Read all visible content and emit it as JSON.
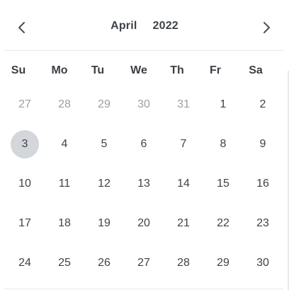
{
  "header": {
    "month": "April",
    "year": "2022",
    "prev_icon": "chevron-left-icon",
    "next_icon": "chevron-right-icon"
  },
  "weekdays": [
    "Su",
    "Mo",
    "Tu",
    "We",
    "Th",
    "Fr",
    "Sa"
  ],
  "weeks": [
    [
      {
        "label": "27",
        "outside": true
      },
      {
        "label": "28",
        "outside": true
      },
      {
        "label": "29",
        "outside": true
      },
      {
        "label": "30",
        "outside": true
      },
      {
        "label": "31",
        "outside": true
      },
      {
        "label": "1",
        "outside": false
      },
      {
        "label": "2",
        "outside": false
      }
    ],
    [
      {
        "label": "3",
        "outside": false,
        "selected": true
      },
      {
        "label": "4",
        "outside": false
      },
      {
        "label": "5",
        "outside": false
      },
      {
        "label": "6",
        "outside": false
      },
      {
        "label": "7",
        "outside": false
      },
      {
        "label": "8",
        "outside": false
      },
      {
        "label": "9",
        "outside": false
      }
    ],
    [
      {
        "label": "10",
        "outside": false
      },
      {
        "label": "11",
        "outside": false
      },
      {
        "label": "12",
        "outside": false
      },
      {
        "label": "13",
        "outside": false
      },
      {
        "label": "14",
        "outside": false
      },
      {
        "label": "15",
        "outside": false
      },
      {
        "label": "16",
        "outside": false
      }
    ],
    [
      {
        "label": "17",
        "outside": false
      },
      {
        "label": "18",
        "outside": false
      },
      {
        "label": "19",
        "outside": false
      },
      {
        "label": "20",
        "outside": false
      },
      {
        "label": "21",
        "outside": false
      },
      {
        "label": "22",
        "outside": false
      },
      {
        "label": "23",
        "outside": false
      }
    ],
    [
      {
        "label": "24",
        "outside": false
      },
      {
        "label": "25",
        "outside": false
      },
      {
        "label": "26",
        "outside": false
      },
      {
        "label": "27",
        "outside": false
      },
      {
        "label": "28",
        "outside": false
      },
      {
        "label": "29",
        "outside": false
      },
      {
        "label": "30",
        "outside": false
      }
    ]
  ],
  "colors": {
    "text": "#3f4349",
    "muted_text": "#9b9ea3",
    "selected_background": "#d3d6da",
    "divider": "#e6e7e9"
  }
}
